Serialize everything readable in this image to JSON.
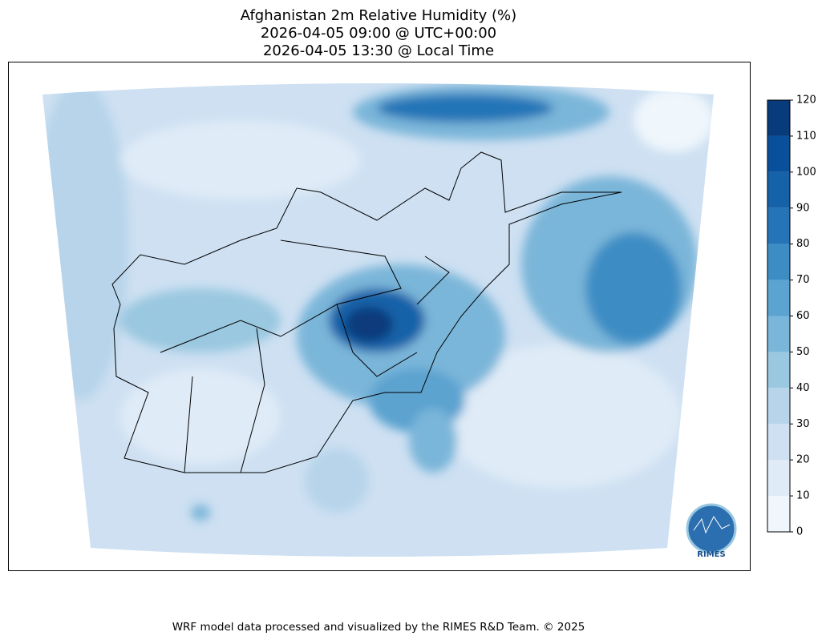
{
  "title_lines": [
    "Afghanistan 2m Relative Humidity (%)",
    "2026-04-05 09:00 @ UTC+00:00",
    "2026-04-05 13:30 @ Local Time"
  ],
  "colorbar": {
    "lim": [
      0,
      120
    ],
    "ticks": [
      0,
      10,
      20,
      30,
      40,
      50,
      60,
      70,
      80,
      90,
      100,
      110,
      120
    ],
    "colors": [
      "#eff6fc",
      "#dfebf7",
      "#cee0f2",
      "#b7d4ea",
      "#9ac8e0",
      "#7ab6d9",
      "#5ba3d0",
      "#3d8dc4",
      "#2474b7",
      "#1562a8",
      "#08509b",
      "#083b7c"
    ]
  },
  "logo": "RIMES",
  "footer": "WRF model data processed and visualized by the RIMES R&D Team. © 2025"
}
